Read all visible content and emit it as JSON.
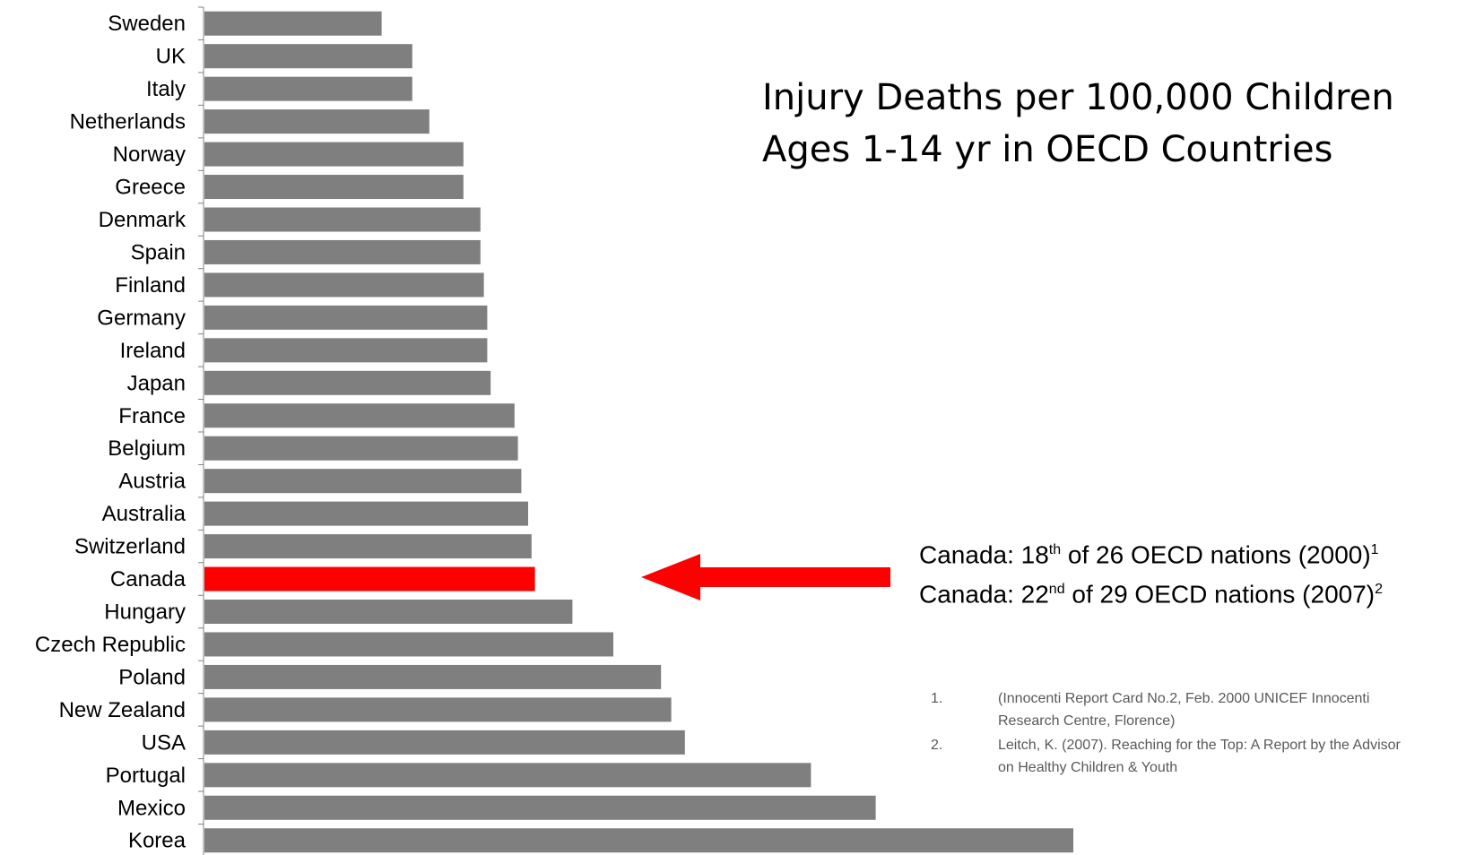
{
  "chart_data": {
    "type": "bar",
    "orientation": "horizontal",
    "categories": [
      "Sweden",
      "UK",
      "Italy",
      "Netherlands",
      "Norway",
      "Greece",
      "Denmark",
      "Spain",
      "Finland",
      "Germany",
      "Ireland",
      "Japan",
      "France",
      "Belgium",
      "Austria",
      "Australia",
      "Switzerland",
      "Canada",
      "Hungary",
      "Czech Republic",
      "Poland",
      "New Zealand",
      "USA",
      "Portugal",
      "Mexico",
      "Korea"
    ],
    "values": [
      5.2,
      6.1,
      6.1,
      6.6,
      7.6,
      7.6,
      8.1,
      8.1,
      8.2,
      8.3,
      8.3,
      8.4,
      9.1,
      9.2,
      9.3,
      9.5,
      9.6,
      9.7,
      10.8,
      12.0,
      13.4,
      13.7,
      14.1,
      17.8,
      19.7,
      25.5
    ],
    "highlight": "Canada",
    "colors": {
      "bar": "#7f7f7f",
      "highlight": "#ff0000",
      "axis": "#808080"
    },
    "xlim": [
      0,
      30
    ],
    "title": "Injury Deaths per 100,000 Children Ages 1-14 yr in OECD Countries",
    "xlabel": "",
    "ylabel": "",
    "grid": false
  },
  "title": {
    "line1": "Injury Deaths per 100,000 Children",
    "line2": "Ages 1-14 yr in OECD Countries"
  },
  "annotation": {
    "arrow_color": "#ff0000",
    "line1": {
      "prefix": "Canada: 18",
      "sup": "th",
      "suffix": " of 26 OECD nations (2000)",
      "ref": "1"
    },
    "line2": {
      "prefix": "Canada: 22",
      "sup": "nd",
      "suffix": " of 29 OECD nations (2007)",
      "ref": "2"
    }
  },
  "references": [
    {
      "num": "1.",
      "lines": [
        "(Innocenti Report Card No.2, Feb. 2000 UNICEF Innocenti",
        "Research Centre, Florence)"
      ]
    },
    {
      "num": "2.",
      "lines": [
        "Leitch, K. (2007). Reaching for the Top: A Report by the Advisor",
        "on Healthy Children & Youth"
      ]
    }
  ]
}
